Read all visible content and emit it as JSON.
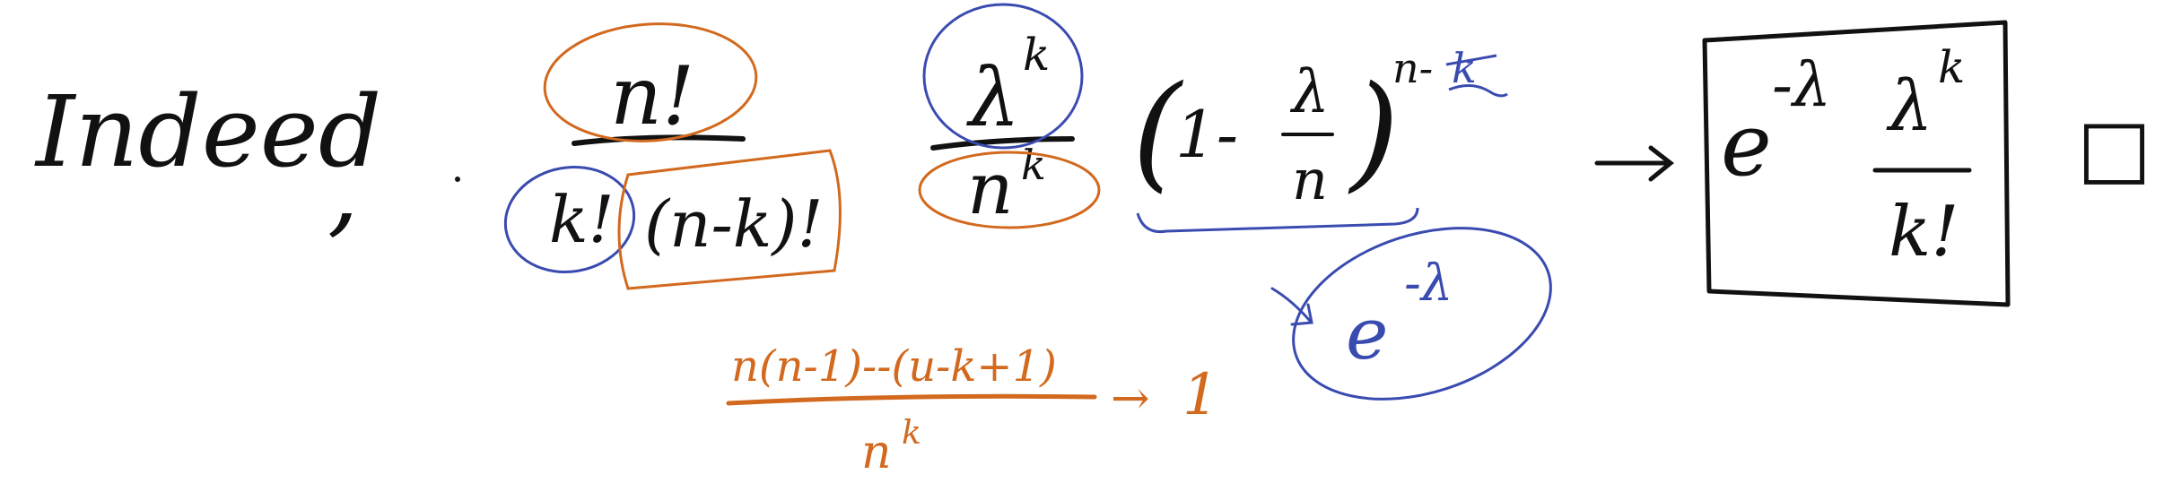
{
  "colors": {
    "black": "#111111",
    "orange": "#d2691e",
    "blue": "#3a4bb0",
    "background": "#ffffff"
  },
  "main": {
    "intro_word": "Indeed",
    "intro_comma": ",",
    "binomial": {
      "numerator": "n!",
      "denominator_left": "k!",
      "denominator_right": "(n-k)!"
    },
    "lambda_term": {
      "numerator": "λ",
      "numerator_exp": "k",
      "denominator": "n",
      "denominator_exp": "k"
    },
    "limit_term": {
      "open_paren": "(",
      "one_minus": "1-",
      "frac_num": "λ",
      "frac_den": "n",
      "close_paren": ")",
      "exponent": "n-",
      "exponent_k": "k"
    },
    "arrow": "→",
    "result": {
      "base": "e",
      "exponent": "-λ",
      "frac_num": "λ",
      "frac_num_exp": "k",
      "frac_den": "k!"
    },
    "qed": "□"
  },
  "annotations": {
    "orange_ratio": {
      "numerator": "n(n-1)--(u-k+1)",
      "denominator": "n",
      "denominator_exp": "k",
      "arrow": "→",
      "limit": "1"
    },
    "blue_limit": {
      "base": "e",
      "exponent": "-λ"
    }
  }
}
